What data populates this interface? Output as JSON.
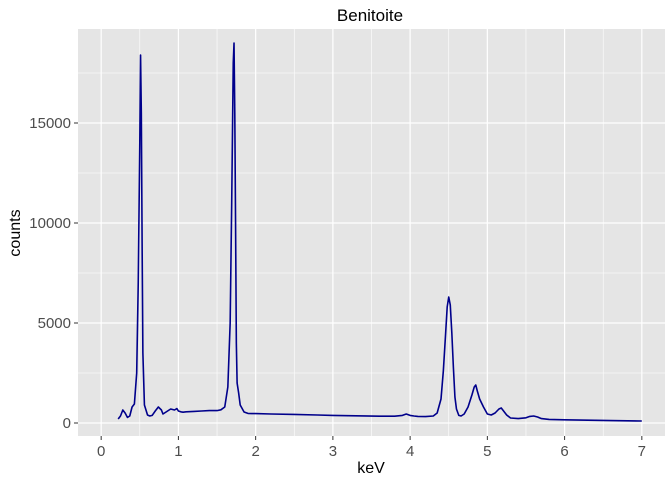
{
  "chart_data": {
    "type": "line",
    "title": "Benitoite",
    "xlabel": "keV",
    "ylabel": "counts",
    "xlim": [
      -0.3,
      7.3
    ],
    "ylim": [
      -650,
      19700
    ],
    "grid": true,
    "legend": "none",
    "x_ticks": [
      0,
      1,
      2,
      3,
      4,
      5,
      6,
      7
    ],
    "y_ticks": [
      0,
      5000,
      10000,
      15000
    ],
    "x_tick_labels": [
      "0",
      "1",
      "2",
      "3",
      "4",
      "5",
      "6",
      "7"
    ],
    "y_tick_labels": [
      "0",
      "5000",
      "10000",
      "15000"
    ],
    "colors": {
      "panel": "#e5e5e5",
      "grid_major": "#ffffff",
      "line": "#00008b",
      "tick": "#333333"
    },
    "series": [
      {
        "x": [
          0.22,
          0.25,
          0.28,
          0.31,
          0.34,
          0.37,
          0.4,
          0.43,
          0.46,
          0.48,
          0.5,
          0.51,
          0.52,
          0.53,
          0.54,
          0.56,
          0.58,
          0.6,
          0.63,
          0.66,
          0.7,
          0.74,
          0.78,
          0.8,
          0.82,
          0.86,
          0.9,
          0.95,
          0.98,
          1.0,
          1.03,
          1.06,
          1.1,
          1.2,
          1.3,
          1.4,
          1.5,
          1.55,
          1.6,
          1.64,
          1.67,
          1.69,
          1.71,
          1.72,
          1.73,
          1.74,
          1.75,
          1.76,
          1.78,
          1.8,
          1.85,
          1.9,
          1.95,
          2.0,
          2.2,
          2.5,
          2.8,
          3.0,
          3.3,
          3.6,
          3.8,
          3.9,
          3.95,
          4.0,
          4.05,
          4.1,
          4.2,
          4.3,
          4.35,
          4.4,
          4.43,
          4.46,
          4.48,
          4.5,
          4.52,
          4.54,
          4.56,
          4.58,
          4.6,
          4.63,
          4.66,
          4.7,
          4.75,
          4.8,
          4.83,
          4.85,
          4.87,
          4.9,
          4.95,
          5.0,
          5.05,
          5.1,
          5.15,
          5.18,
          5.2,
          5.25,
          5.3,
          5.4,
          5.5,
          5.55,
          5.6,
          5.65,
          5.7,
          5.8,
          6.0,
          6.3,
          6.6,
          7.0
        ],
        "y": [
          200,
          350,
          650,
          500,
          280,
          350,
          800,
          950,
          2500,
          7000,
          14000,
          18400,
          15500,
          9000,
          3500,
          900,
          650,
          400,
          350,
          380,
          600,
          800,
          650,
          450,
          500,
          600,
          700,
          650,
          720,
          600,
          560,
          540,
          560,
          580,
          600,
          620,
          620,
          660,
          800,
          1800,
          5000,
          11000,
          18000,
          19000,
          15500,
          10000,
          4000,
          2000,
          1500,
          900,
          550,
          480,
          470,
          470,
          450,
          430,
          400,
          380,
          360,
          340,
          340,
          380,
          450,
          380,
          350,
          330,
          320,
          350,
          500,
          1200,
          2600,
          4500,
          5800,
          6300,
          5900,
          4500,
          2800,
          1300,
          700,
          380,
          350,
          450,
          800,
          1400,
          1800,
          1900,
          1600,
          1200,
          800,
          450,
          400,
          500,
          700,
          750,
          650,
          400,
          250,
          220,
          260,
          330,
          350,
          300,
          220,
          180,
          160,
          140,
          120,
          100
        ]
      }
    ]
  }
}
